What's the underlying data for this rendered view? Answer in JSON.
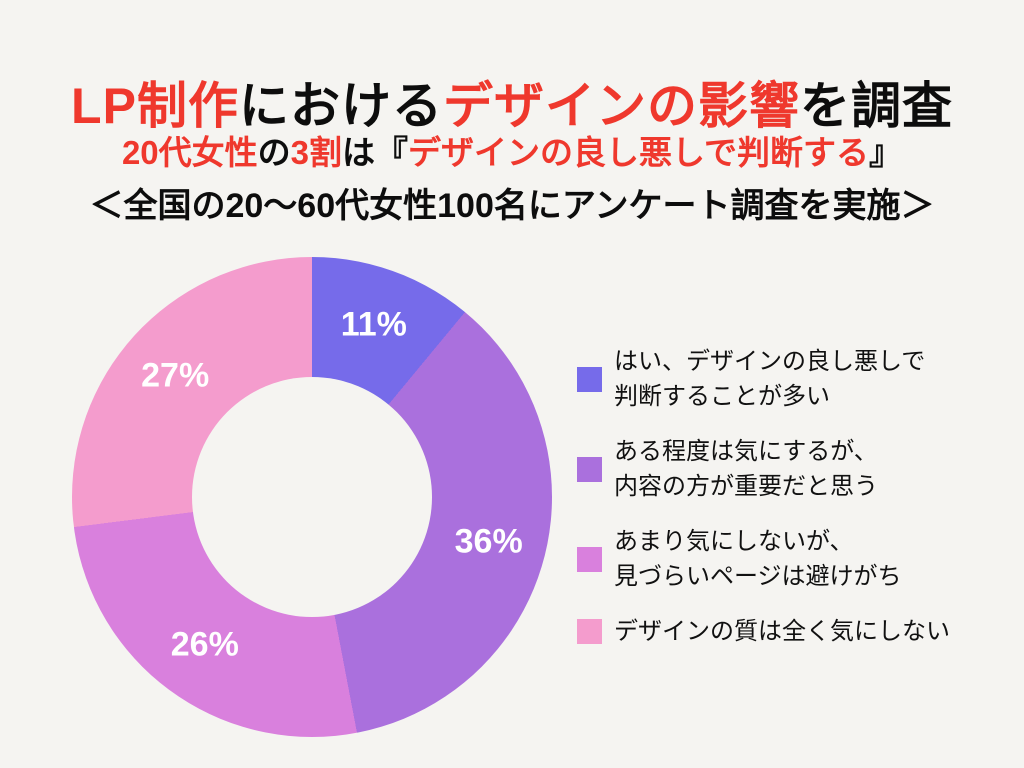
{
  "header": {
    "title_parts": [
      {
        "text": "LP制作",
        "emphasis": true
      },
      {
        "text": "における",
        "emphasis": false
      },
      {
        "text": "デザインの影響",
        "emphasis": true
      },
      {
        "text": "を調査",
        "emphasis": false
      }
    ],
    "headline_parts": [
      {
        "text": "20代女性",
        "emphasis": true
      },
      {
        "text": "の",
        "emphasis": false
      },
      {
        "text": "3割",
        "emphasis": true
      },
      {
        "text": "は『",
        "emphasis": false
      },
      {
        "text": "デザインの良し悪しで判断する",
        "emphasis": true
      },
      {
        "text": "』",
        "emphasis": false
      }
    ],
    "survey_note": "＜全国の20〜60代女性100名にアンケート調査を実施＞",
    "accent_color": "#EF382D"
  },
  "legend": {
    "items": [
      {
        "label": "はい、デザインの良し悪しで\n判断することが多い"
      },
      {
        "label": "ある程度は気にするが、\n内容の方が重要だと思う"
      },
      {
        "label": "あまり気にしないが、\n見づらいページは避けがち"
      },
      {
        "label": "デザインの質は全く気にしない"
      }
    ]
  },
  "chart_data": {
    "type": "pie",
    "subtype": "donut",
    "title": "LP制作におけるデザインの影響を調査",
    "unit": "%",
    "start_angle_deg": 0,
    "direction": "clockwise",
    "hole_ratio": 0.5,
    "legend_position": "right",
    "categories": [
      "はい、デザインの良し悪しで判断することが多い",
      "ある程度は気にするが、内容の方が重要だと思う",
      "あまり気にしないが、見づらいページは避けがち",
      "デザインの質は全く気にしない"
    ],
    "values": [
      11,
      36,
      26,
      27
    ],
    "value_labels": [
      "11%",
      "36%",
      "26%",
      "27%"
    ],
    "colors": [
      "#766BEA",
      "#AA70DD",
      "#D980DD",
      "#F49CCD"
    ],
    "label_color": "#FFFFFF",
    "background_color": "#F5F4F1"
  }
}
